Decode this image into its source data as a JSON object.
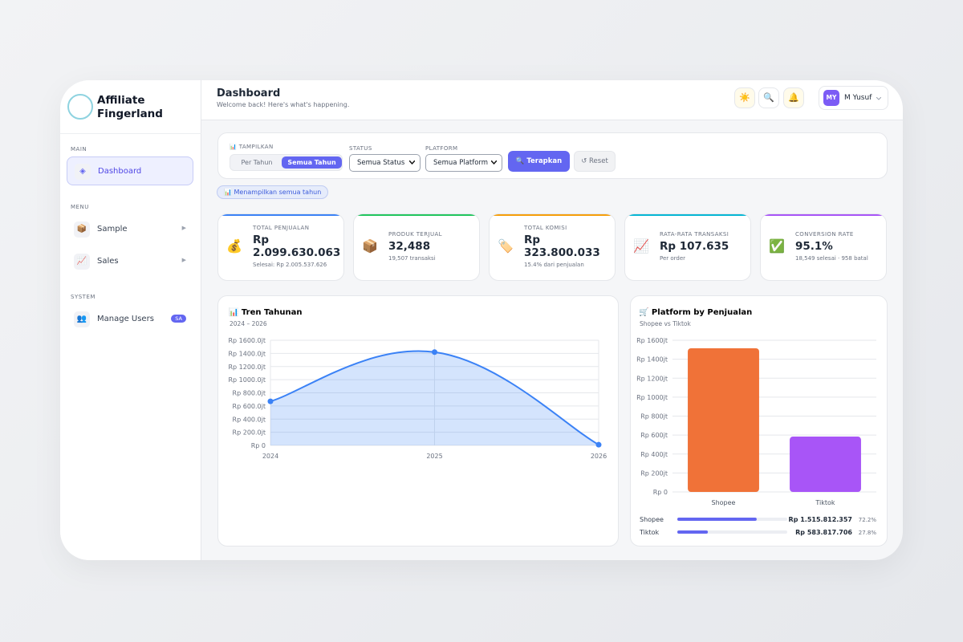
{
  "sidebar": {
    "brand": [
      "Affiliate",
      "Fingerland"
    ],
    "sections": [
      {
        "title": "MAIN",
        "items": [
          {
            "icon": "◈",
            "label": "Dashboard"
          }
        ]
      },
      {
        "title": "MENU",
        "items": [
          {
            "icon": "📦",
            "label": "Sample",
            "arrow": "▶"
          },
          {
            "icon": "📈",
            "label": "Sales",
            "arrow": "▶"
          }
        ]
      },
      {
        "title": "SYSTEM",
        "items": [
          {
            "icon": "👥",
            "label": "Manage Users",
            "badge": "SA"
          }
        ]
      }
    ]
  },
  "header": {
    "title": "Dashboard",
    "subtitle": "Welcome back! Here's what's happening.",
    "actions": [
      "☀️",
      "🔍",
      "🔔"
    ],
    "user": {
      "initials": "MY",
      "name": "M Yusuf"
    }
  },
  "filters": {
    "display": {
      "label": "📊 TAMPILKAN",
      "options": [
        "Per Tahun",
        "Semua Tahun"
      ]
    },
    "status": {
      "label": "STATUS",
      "selected": "Semua Status"
    },
    "platform": {
      "label": "PLATFORM",
      "selected": "Semua Platform"
    },
    "apply": "🔍 Terapkan",
    "reset": "↺ Reset",
    "active_chip": "📊 Menampilkan semua tahun"
  },
  "stats": [
    {
      "icon": "💰",
      "label": "TOTAL PENJUALAN",
      "value": "Rp 2.099.630.063",
      "note": "Selesai: Rp 2.005.537.626",
      "color": "#3b82f6"
    },
    {
      "icon": "📦",
      "label": "PRODUK TERJUAL",
      "value": "32,488",
      "note": "19,507 transaksi",
      "color": "#22c55e"
    },
    {
      "icon": "🏷️",
      "label": "TOTAL KOMISI",
      "value": "Rp 323.800.033",
      "note": "15.4% dari penjualan",
      "color": "#f59e0b"
    },
    {
      "icon": "📈",
      "label": "RATA-RATA TRANSAKSI",
      "value": "Rp 107.635",
      "note": "Per order",
      "color": "#06b6d4"
    },
    {
      "icon": "✅",
      "label": "CONVERSION RATE",
      "value": "95.1%",
      "note": "18,549 selesai · 958 batal",
      "color": "#a855f7"
    }
  ],
  "chart_data": [
    {
      "type": "line",
      "title": "📊 Tren Tahunan",
      "subtitle": "2024 – 2026",
      "categories": [
        "2024",
        "2025",
        "2026"
      ],
      "values": [
        670,
        1420,
        10
      ],
      "color": "#3b82f6",
      "ylim": [
        0,
        1600
      ],
      "yticks": [
        {
          "value": 0,
          "label": "Rp 0"
        },
        {
          "value": 200,
          "label": "Rp 200.0jt"
        },
        {
          "value": 400,
          "label": "Rp 400.0jt"
        },
        {
          "value": 600,
          "label": "Rp 600.0jt"
        },
        {
          "value": 800,
          "label": "Rp 800.0jt"
        },
        {
          "value": 1000,
          "label": "Rp 1000.0jt"
        },
        {
          "value": 1200,
          "label": "Rp 1200.0jt"
        },
        {
          "value": 1400,
          "label": "Rp 1400.0jt"
        },
        {
          "value": 1600,
          "label": "Rp 1600.0jt"
        }
      ],
      "grid": true
    },
    {
      "type": "bar",
      "title": "🛒 Platform by Penjualan",
      "subtitle": "Shopee vs Tiktok",
      "categories": [
        "Shopee",
        "Tiktok"
      ],
      "values": [
        1515.8,
        583.8
      ],
      "colors": [
        "#f07238",
        "#a855f7"
      ],
      "ylim": [
        0,
        1600
      ],
      "yticks": [
        {
          "value": 0,
          "label": "Rp 0"
        },
        {
          "value": 200,
          "label": "Rp 200jt"
        },
        {
          "value": 400,
          "label": "Rp 400jt"
        },
        {
          "value": 600,
          "label": "Rp 600jt"
        },
        {
          "value": 800,
          "label": "Rp 800jt"
        },
        {
          "value": 1000,
          "label": "Rp 1000jt"
        },
        {
          "value": 1200,
          "label": "Rp 1200jt"
        },
        {
          "value": 1400,
          "label": "Rp 1400jt"
        },
        {
          "value": 1600,
          "label": "Rp 1600jt"
        }
      ],
      "grid": true
    }
  ],
  "platform_breakdown": {
    "color": "#6366f1",
    "rows": [
      {
        "name": "Shopee",
        "amount": "Rp 1.515.812.357",
        "share": {
          "value": 72.2,
          "label": "72.2%"
        }
      },
      {
        "name": "Tiktok",
        "amount": "Rp 583.817.706",
        "share": {
          "value": 27.8,
          "label": "27.8%"
        }
      }
    ]
  }
}
